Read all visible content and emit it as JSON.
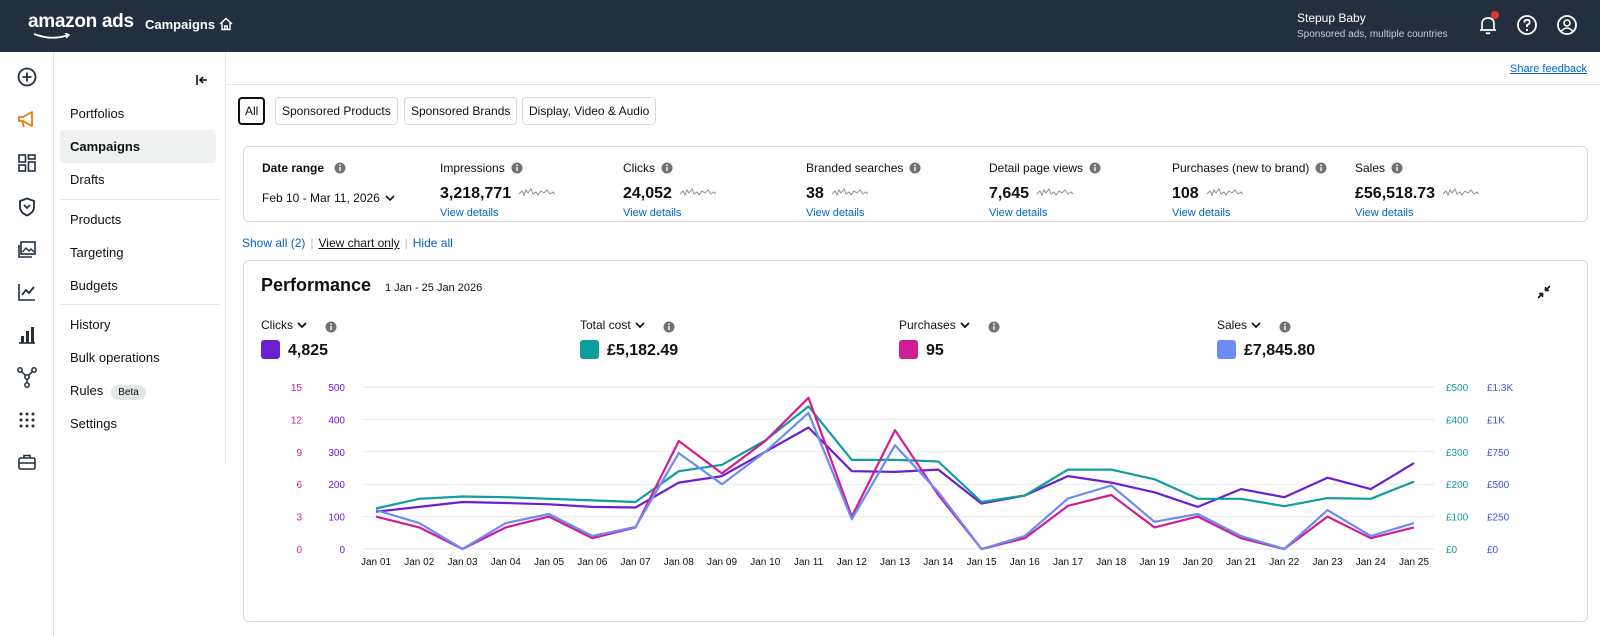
{
  "topbar": {
    "logo": "amazon ads",
    "crumb": "Campaigns",
    "account_name": "Stepup Baby",
    "account_sub": "Sponsored ads, multiple countries"
  },
  "sidebar": {
    "items": [
      {
        "label": "Portfolios"
      },
      {
        "label": "Campaigns",
        "active": true
      },
      {
        "label": "Drafts"
      },
      {
        "label": "Products"
      },
      {
        "label": "Targeting"
      },
      {
        "label": "Budgets"
      },
      {
        "label": "History"
      },
      {
        "label": "Bulk operations"
      },
      {
        "label": "Rules",
        "badge": "Beta"
      },
      {
        "label": "Settings"
      }
    ]
  },
  "header": {
    "share_feedback": "Share feedback"
  },
  "filters": [
    "All",
    "Sponsored Products",
    "Sponsored Brands",
    "Display, Video & Audio"
  ],
  "metrics": {
    "date_range_label": "Date range",
    "date_range_value": "Feb 10 - Mar 11, 2026",
    "items": [
      {
        "label": "Impressions",
        "value": "3,218,771",
        "link": "View details"
      },
      {
        "label": "Clicks",
        "value": "24,052",
        "link": "View details"
      },
      {
        "label": "Branded searches",
        "value": "38",
        "link": "View details"
      },
      {
        "label": "Detail page views",
        "value": "7,645",
        "link": "View details"
      },
      {
        "label": "Purchases (new to brand)",
        "value": "108",
        "link": "View details"
      },
      {
        "label": "Sales",
        "value": "£56,518.73",
        "link": "View details"
      }
    ]
  },
  "links": {
    "show_all": "Show all (2)",
    "view_chart_only": "View chart only",
    "hide_all": "Hide all"
  },
  "performance": {
    "title": "Performance",
    "date": "1 Jan - 25 Jan 2026",
    "series_selectors": [
      {
        "name": "Clicks",
        "value": "4,825",
        "color": "#6a1fd1"
      },
      {
        "name": "Total cost",
        "value": "£5,182.49",
        "color": "#0f9e99"
      },
      {
        "name": "Purchases",
        "value": "95",
        "color": "#d11d94"
      },
      {
        "name": "Sales",
        "value": "£7,845.80",
        "color": "#6c8bf5"
      }
    ]
  },
  "chart_data": {
    "type": "line",
    "x": [
      "Jan 01",
      "Jan 02",
      "Jan 03",
      "Jan 04",
      "Jan 05",
      "Jan 06",
      "Jan 07",
      "Jan 08",
      "Jan 09",
      "Jan 10",
      "Jan 11",
      "Jan 12",
      "Jan 13",
      "Jan 14",
      "Jan 15",
      "Jan 16",
      "Jan 17",
      "Jan 18",
      "Jan 19",
      "Jan 20",
      "Jan 21",
      "Jan 22",
      "Jan 23",
      "Jan 24",
      "Jan 25"
    ],
    "axes": {
      "purchases": {
        "ticks": [
          "0",
          "3",
          "6",
          "9",
          "12",
          "15"
        ],
        "range": [
          0,
          15
        ],
        "color": "#d11d94"
      },
      "clicks": {
        "ticks": [
          "0",
          "100",
          "200",
          "300",
          "400",
          "500"
        ],
        "range": [
          0,
          500
        ],
        "color": "#6a1fd1"
      },
      "cost": {
        "ticks": [
          "£0",
          "£100",
          "£200",
          "£300",
          "£400",
          "£500"
        ],
        "range": [
          0,
          500
        ],
        "color": "#0f9e99"
      },
      "sales": {
        "ticks": [
          "£0",
          "£250",
          "£500",
          "£750",
          "£1K",
          "£1.3K"
        ],
        "range": [
          0,
          1250
        ],
        "color": "#3f55d9"
      }
    },
    "series": [
      {
        "name": "Clicks",
        "axis": "clicks",
        "color": "#6a1fd1",
        "values": [
          115,
          130,
          145,
          142,
          138,
          130,
          128,
          205,
          225,
          300,
          375,
          240,
          238,
          245,
          140,
          165,
          225,
          205,
          175,
          130,
          185,
          160,
          220,
          185,
          265
        ]
      },
      {
        "name": "Total cost",
        "axis": "cost",
        "color": "#0f9e99",
        "values": [
          125,
          155,
          162,
          160,
          155,
          150,
          145,
          240,
          260,
          335,
          440,
          275,
          275,
          270,
          145,
          165,
          245,
          245,
          215,
          155,
          155,
          132,
          157,
          155,
          208
        ]
      },
      {
        "name": "Purchases",
        "axis": "purchases",
        "color": "#d11d94",
        "values": [
          3,
          2,
          0,
          2,
          3,
          1,
          2,
          10,
          7,
          10,
          14,
          3,
          11,
          5,
          0,
          1,
          4,
          5,
          2,
          3,
          1,
          0,
          3,
          1,
          2
        ]
      },
      {
        "name": "Sales",
        "axis": "sales",
        "color": "#6c8bf5",
        "values": [
          300,
          200,
          0,
          200,
          270,
          100,
          170,
          740,
          500,
          750,
          1050,
          230,
          800,
          440,
          0,
          100,
          390,
          490,
          210,
          270,
          100,
          0,
          300,
          100,
          200
        ]
      }
    ],
    "grid": true
  }
}
